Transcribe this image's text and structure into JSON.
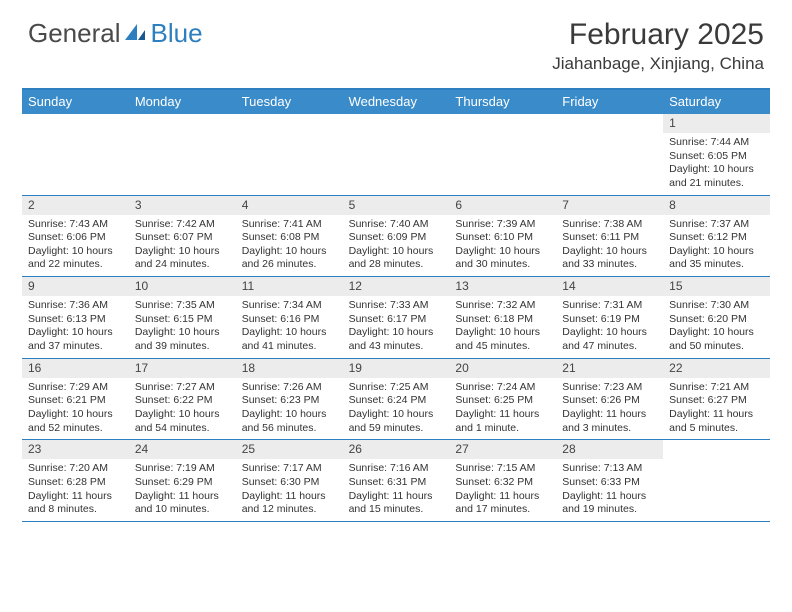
{
  "logo": {
    "text1": "General",
    "text2": "Blue"
  },
  "title": "February 2025",
  "location": "Jiahanbage, Xinjiang, China",
  "colors": {
    "header_bg": "#3a8bc9",
    "border": "#2e7fbf",
    "daynum_bg": "#ececec",
    "text": "#333333",
    "white": "#ffffff"
  },
  "dayNames": [
    "Sunday",
    "Monday",
    "Tuesday",
    "Wednesday",
    "Thursday",
    "Friday",
    "Saturday"
  ],
  "weeks": [
    [
      null,
      null,
      null,
      null,
      null,
      null,
      {
        "n": "1",
        "sr": "Sunrise: 7:44 AM",
        "ss": "Sunset: 6:05 PM",
        "dl": "Daylight: 10 hours and 21 minutes."
      }
    ],
    [
      {
        "n": "2",
        "sr": "Sunrise: 7:43 AM",
        "ss": "Sunset: 6:06 PM",
        "dl": "Daylight: 10 hours and 22 minutes."
      },
      {
        "n": "3",
        "sr": "Sunrise: 7:42 AM",
        "ss": "Sunset: 6:07 PM",
        "dl": "Daylight: 10 hours and 24 minutes."
      },
      {
        "n": "4",
        "sr": "Sunrise: 7:41 AM",
        "ss": "Sunset: 6:08 PM",
        "dl": "Daylight: 10 hours and 26 minutes."
      },
      {
        "n": "5",
        "sr": "Sunrise: 7:40 AM",
        "ss": "Sunset: 6:09 PM",
        "dl": "Daylight: 10 hours and 28 minutes."
      },
      {
        "n": "6",
        "sr": "Sunrise: 7:39 AM",
        "ss": "Sunset: 6:10 PM",
        "dl": "Daylight: 10 hours and 30 minutes."
      },
      {
        "n": "7",
        "sr": "Sunrise: 7:38 AM",
        "ss": "Sunset: 6:11 PM",
        "dl": "Daylight: 10 hours and 33 minutes."
      },
      {
        "n": "8",
        "sr": "Sunrise: 7:37 AM",
        "ss": "Sunset: 6:12 PM",
        "dl": "Daylight: 10 hours and 35 minutes."
      }
    ],
    [
      {
        "n": "9",
        "sr": "Sunrise: 7:36 AM",
        "ss": "Sunset: 6:13 PM",
        "dl": "Daylight: 10 hours and 37 minutes."
      },
      {
        "n": "10",
        "sr": "Sunrise: 7:35 AM",
        "ss": "Sunset: 6:15 PM",
        "dl": "Daylight: 10 hours and 39 minutes."
      },
      {
        "n": "11",
        "sr": "Sunrise: 7:34 AM",
        "ss": "Sunset: 6:16 PM",
        "dl": "Daylight: 10 hours and 41 minutes."
      },
      {
        "n": "12",
        "sr": "Sunrise: 7:33 AM",
        "ss": "Sunset: 6:17 PM",
        "dl": "Daylight: 10 hours and 43 minutes."
      },
      {
        "n": "13",
        "sr": "Sunrise: 7:32 AM",
        "ss": "Sunset: 6:18 PM",
        "dl": "Daylight: 10 hours and 45 minutes."
      },
      {
        "n": "14",
        "sr": "Sunrise: 7:31 AM",
        "ss": "Sunset: 6:19 PM",
        "dl": "Daylight: 10 hours and 47 minutes."
      },
      {
        "n": "15",
        "sr": "Sunrise: 7:30 AM",
        "ss": "Sunset: 6:20 PM",
        "dl": "Daylight: 10 hours and 50 minutes."
      }
    ],
    [
      {
        "n": "16",
        "sr": "Sunrise: 7:29 AM",
        "ss": "Sunset: 6:21 PM",
        "dl": "Daylight: 10 hours and 52 minutes."
      },
      {
        "n": "17",
        "sr": "Sunrise: 7:27 AM",
        "ss": "Sunset: 6:22 PM",
        "dl": "Daylight: 10 hours and 54 minutes."
      },
      {
        "n": "18",
        "sr": "Sunrise: 7:26 AM",
        "ss": "Sunset: 6:23 PM",
        "dl": "Daylight: 10 hours and 56 minutes."
      },
      {
        "n": "19",
        "sr": "Sunrise: 7:25 AM",
        "ss": "Sunset: 6:24 PM",
        "dl": "Daylight: 10 hours and 59 minutes."
      },
      {
        "n": "20",
        "sr": "Sunrise: 7:24 AM",
        "ss": "Sunset: 6:25 PM",
        "dl": "Daylight: 11 hours and 1 minute."
      },
      {
        "n": "21",
        "sr": "Sunrise: 7:23 AM",
        "ss": "Sunset: 6:26 PM",
        "dl": "Daylight: 11 hours and 3 minutes."
      },
      {
        "n": "22",
        "sr": "Sunrise: 7:21 AM",
        "ss": "Sunset: 6:27 PM",
        "dl": "Daylight: 11 hours and 5 minutes."
      }
    ],
    [
      {
        "n": "23",
        "sr": "Sunrise: 7:20 AM",
        "ss": "Sunset: 6:28 PM",
        "dl": "Daylight: 11 hours and 8 minutes."
      },
      {
        "n": "24",
        "sr": "Sunrise: 7:19 AM",
        "ss": "Sunset: 6:29 PM",
        "dl": "Daylight: 11 hours and 10 minutes."
      },
      {
        "n": "25",
        "sr": "Sunrise: 7:17 AM",
        "ss": "Sunset: 6:30 PM",
        "dl": "Daylight: 11 hours and 12 minutes."
      },
      {
        "n": "26",
        "sr": "Sunrise: 7:16 AM",
        "ss": "Sunset: 6:31 PM",
        "dl": "Daylight: 11 hours and 15 minutes."
      },
      {
        "n": "27",
        "sr": "Sunrise: 7:15 AM",
        "ss": "Sunset: 6:32 PM",
        "dl": "Daylight: 11 hours and 17 minutes."
      },
      {
        "n": "28",
        "sr": "Sunrise: 7:13 AM",
        "ss": "Sunset: 6:33 PM",
        "dl": "Daylight: 11 hours and 19 minutes."
      },
      null
    ]
  ]
}
